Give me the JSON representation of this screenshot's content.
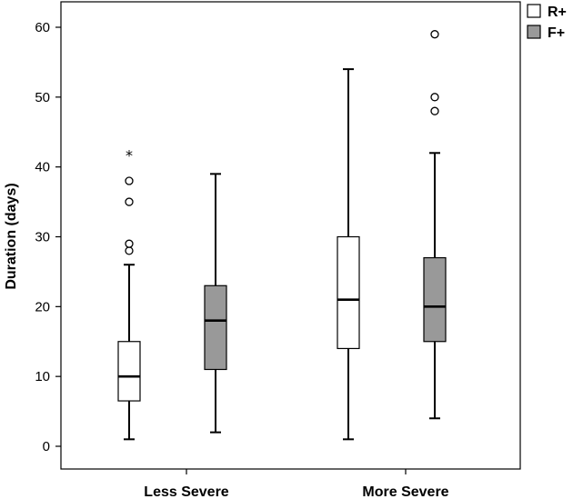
{
  "chart_data": {
    "type": "boxplot",
    "categories": [
      "Less Severe",
      "More Severe"
    ],
    "ylabel": "Duration (days)",
    "xlabel": "",
    "ylim": [
      0,
      60
    ],
    "yticks": [
      0,
      10,
      20,
      30,
      40,
      50,
      60
    ],
    "legend_position": "top-right",
    "grid": false,
    "series": [
      {
        "name": "R+",
        "color": "#ffffff",
        "boxes": [
          {
            "category": "Less Severe",
            "whisker_low": 1,
            "q1": 6.5,
            "median": 10,
            "q3": 15,
            "whisker_high": 26,
            "outliers": [
              28,
              29,
              35,
              38
            ],
            "extremes": [
              42
            ]
          },
          {
            "category": "More Severe",
            "whisker_low": 1,
            "q1": 14,
            "median": 21,
            "q3": 30,
            "whisker_high": 54,
            "outliers": [],
            "extremes": []
          }
        ]
      },
      {
        "name": "F+",
        "color": "#999999",
        "boxes": [
          {
            "category": "Less Severe",
            "whisker_low": 2,
            "q1": 11,
            "median": 18,
            "q3": 23,
            "whisker_high": 39,
            "outliers": [],
            "extremes": []
          },
          {
            "category": "More Severe",
            "whisker_low": 4,
            "q1": 15,
            "median": 20,
            "q3": 27,
            "whisker_high": 42,
            "outliers": [
              48,
              50,
              59
            ],
            "extremes": []
          }
        ]
      }
    ]
  }
}
